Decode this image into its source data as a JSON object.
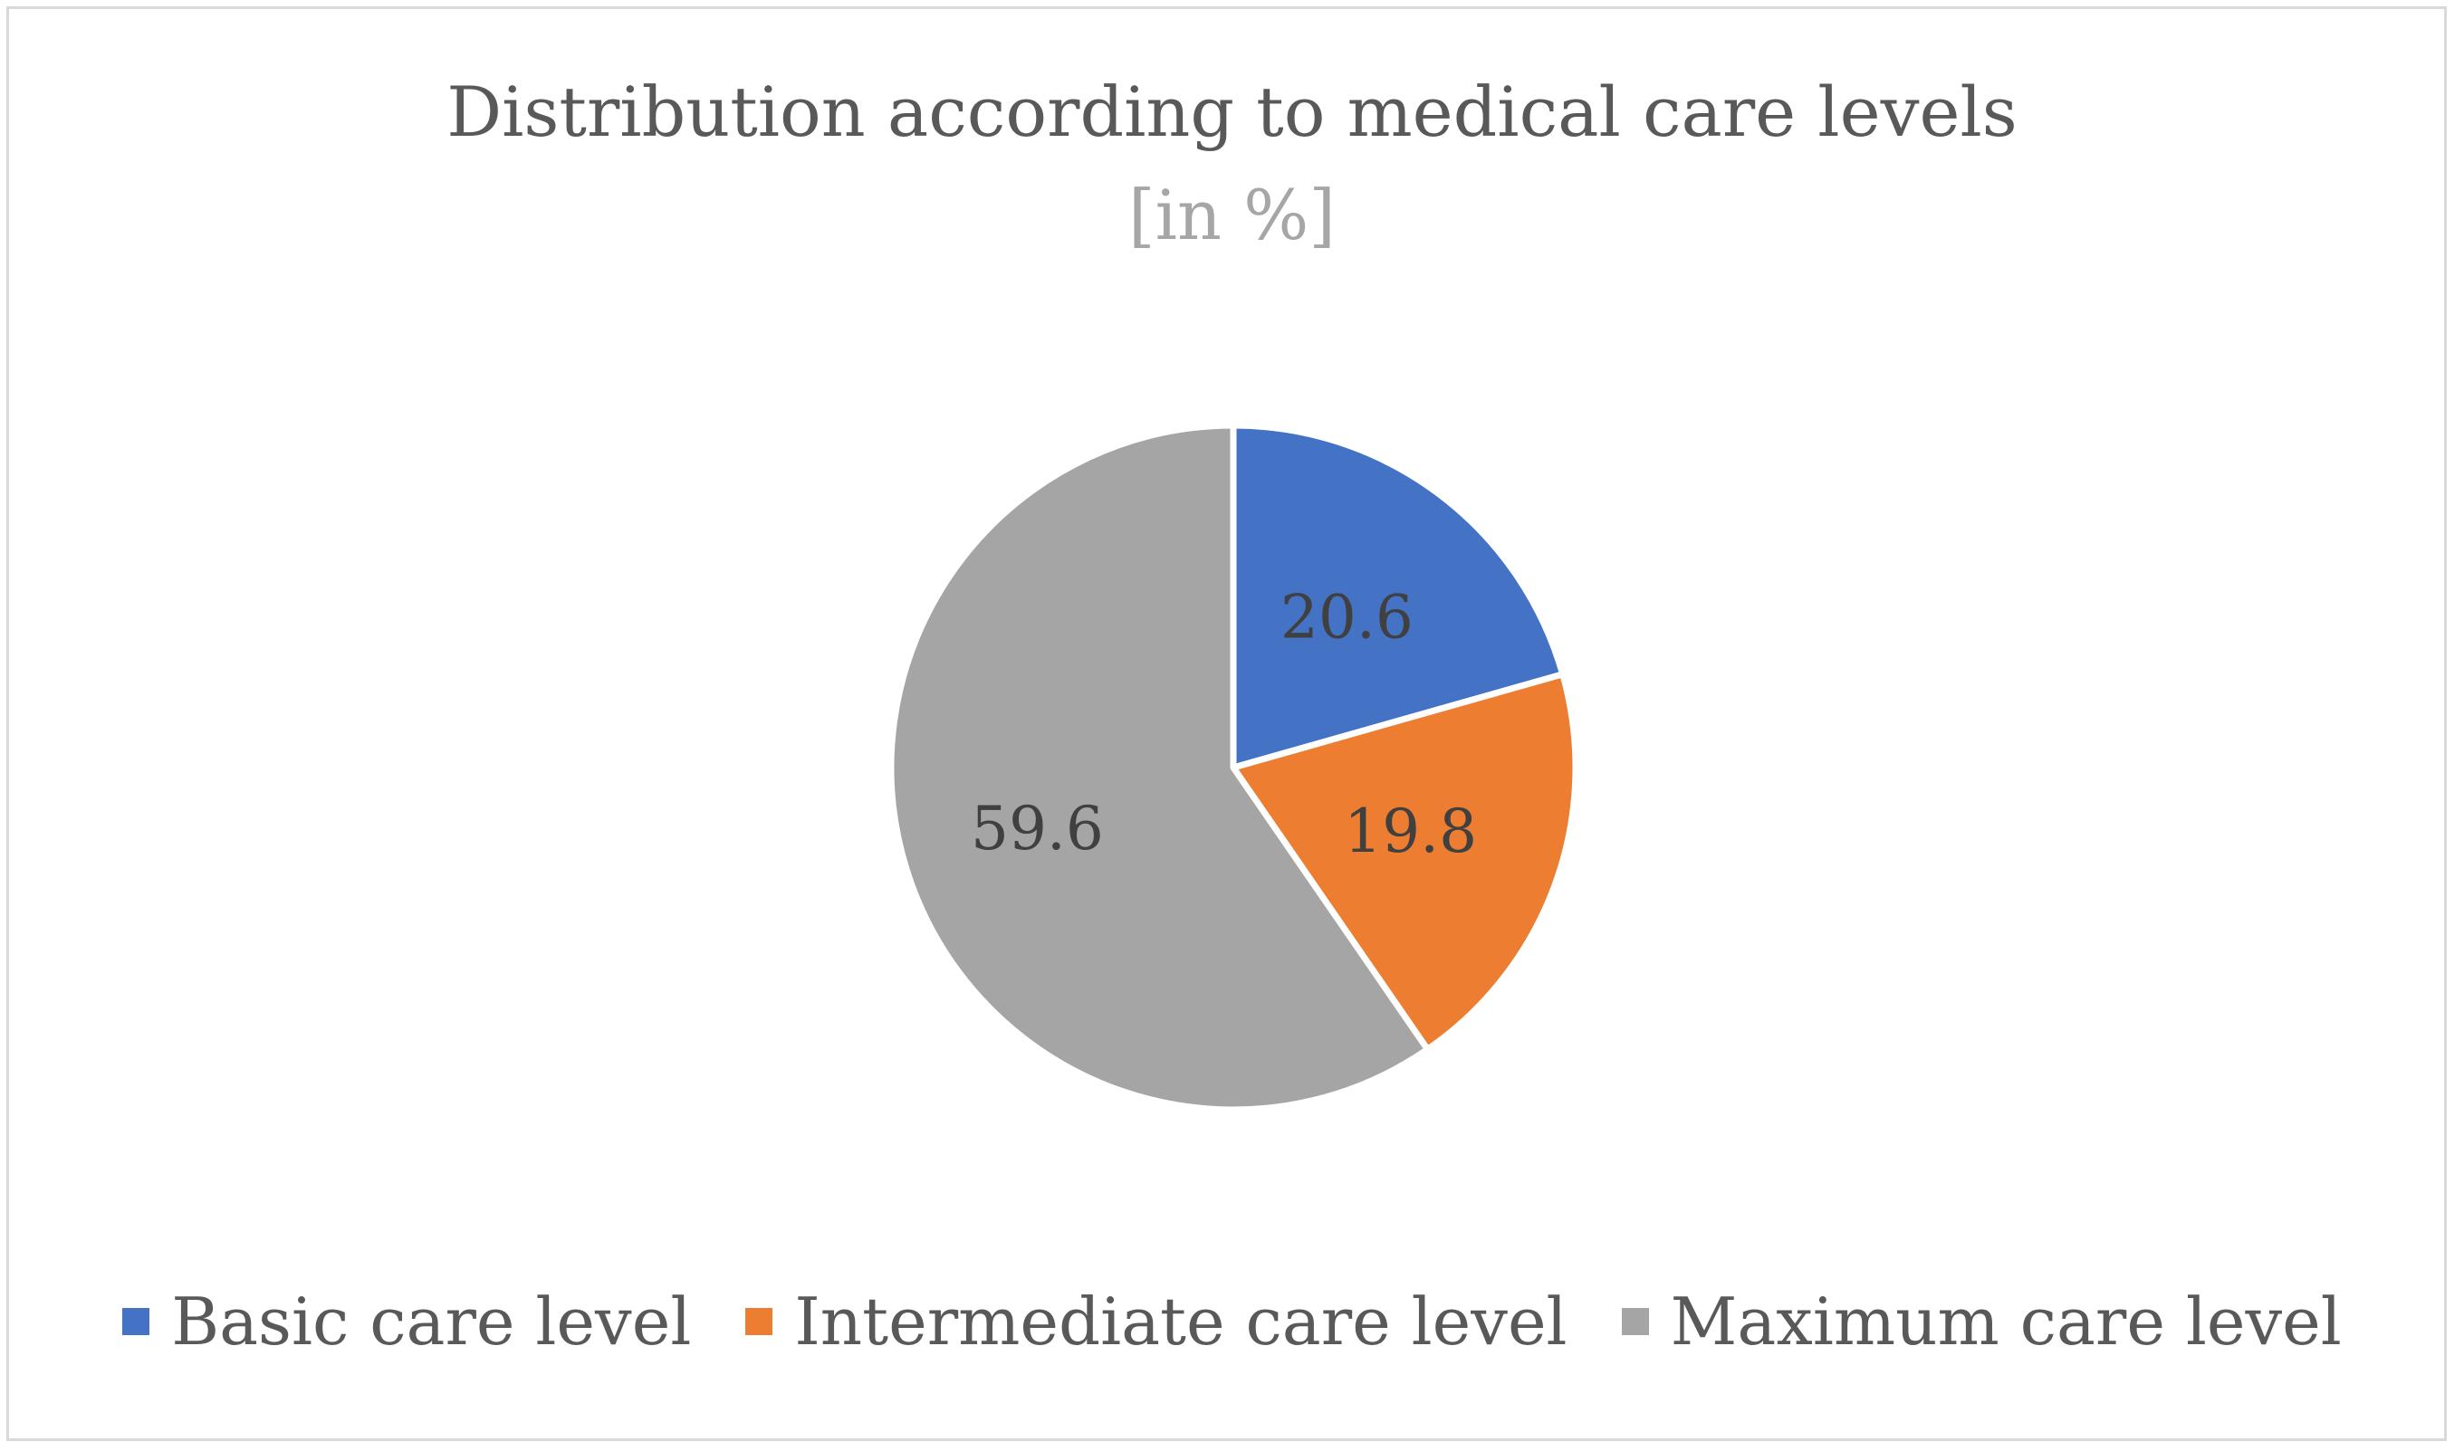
{
  "chart_data": {
    "type": "pie",
    "title": "Distribution according to medical care levels",
    "subtitle": "[in %]",
    "categories": [
      "Basic care level",
      "Intermediate care level",
      "Maximum care level"
    ],
    "values": [
      20.6,
      19.8,
      59.6
    ],
    "data_labels": [
      "20.6",
      "19.8",
      "59.6"
    ],
    "colors": [
      "#4472c4",
      "#ed7d31",
      "#a5a5a5"
    ],
    "legend_position": "bottom",
    "start_angle": "12 o'clock",
    "direction": "clockwise"
  }
}
